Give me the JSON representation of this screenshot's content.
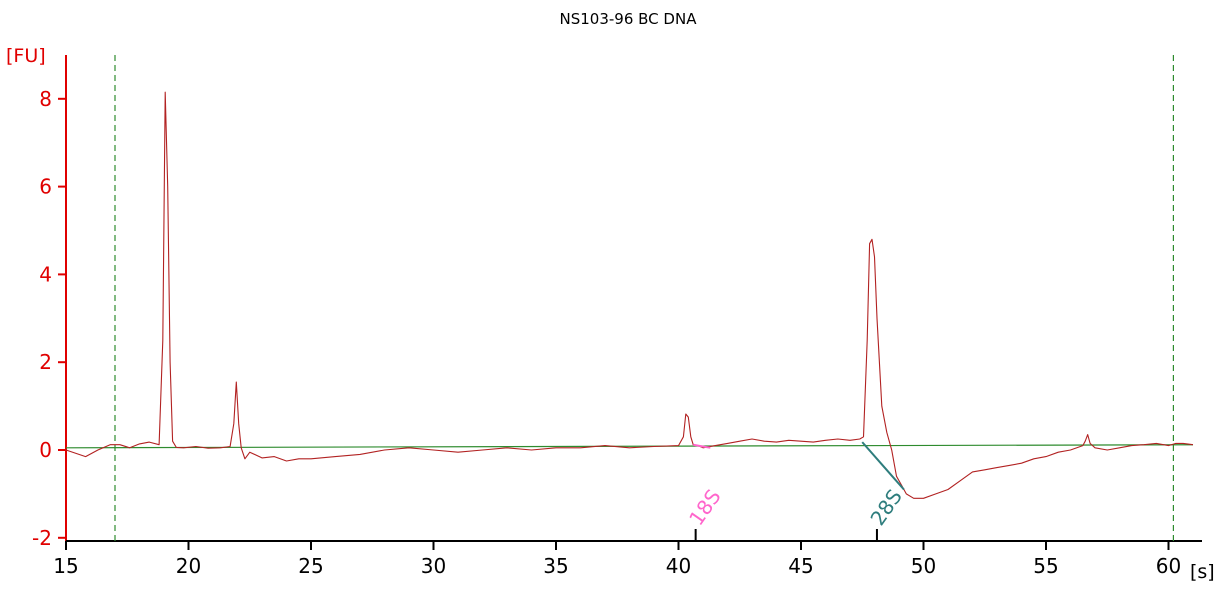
{
  "chart_data": {
    "type": "line",
    "title": "NS103-96 BC DNA",
    "y_unit": "[FU]",
    "x_unit": "[s]",
    "xlim": [
      15,
      61
    ],
    "ylim": [
      -2,
      8.8
    ],
    "x_ticks": [
      "15",
      "20",
      "25",
      "30",
      "35",
      "40",
      "45",
      "50",
      "55",
      "60"
    ],
    "y_ticks": [
      "-2",
      "0",
      "2",
      "4",
      "6",
      "8"
    ],
    "markers": [
      {
        "x": 17.0,
        "style": "dashed",
        "color": "#2e8b2e"
      },
      {
        "x": 60.2,
        "style": "dashed",
        "color": "#2e8b2e"
      }
    ],
    "baseline": {
      "x": [
        15,
        61
      ],
      "y": [
        0.05,
        0.12
      ],
      "color": "#2e8b2e"
    },
    "series": [
      {
        "color": "#b22222",
        "x": [
          15.0,
          15.8,
          16.3,
          16.8,
          17.2,
          17.6,
          18.0,
          18.4,
          18.8,
          18.95,
          19.05,
          19.15,
          19.25,
          19.35,
          19.5,
          19.8,
          20.3,
          20.8,
          21.3,
          21.7,
          21.85,
          21.95,
          22.05,
          22.15,
          22.3,
          22.5,
          23.0,
          23.5,
          24.0,
          24.5,
          25.0,
          26.0,
          27.0,
          28.0,
          29.0,
          30.0,
          31.0,
          32.0,
          33.0,
          34.0,
          35.0,
          36.0,
          37.0,
          38.0,
          39.0,
          40.0,
          40.2,
          40.3,
          40.4,
          40.5,
          40.6,
          40.8,
          41.0,
          41.5,
          42.0,
          42.5,
          43.0,
          43.5,
          44.0,
          44.5,
          45.0,
          45.5,
          46.0,
          46.5,
          47.0,
          47.4,
          47.55,
          47.7,
          47.8,
          47.9,
          48.0,
          48.1,
          48.3,
          48.5,
          48.7,
          48.9,
          49.1,
          49.3,
          49.6,
          50.0,
          50.5,
          51.0,
          51.5,
          52.0,
          52.5,
          53.0,
          53.5,
          54.0,
          54.5,
          55.0,
          55.5,
          56.0,
          56.5,
          56.6,
          56.7,
          56.8,
          57.0,
          57.5,
          58.0,
          58.5,
          59.0,
          59.5,
          60.0,
          60.3,
          60.6,
          61.0
        ],
        "y": [
          0.0,
          -0.15,
          0.0,
          0.12,
          0.12,
          0.05,
          0.14,
          0.18,
          0.12,
          2.5,
          8.15,
          6.0,
          2.0,
          0.2,
          0.06,
          0.05,
          0.08,
          0.04,
          0.05,
          0.08,
          0.6,
          1.55,
          0.6,
          0.05,
          -0.2,
          -0.05,
          -0.18,
          -0.15,
          -0.25,
          -0.2,
          -0.2,
          -0.15,
          -0.1,
          0.0,
          0.05,
          0.0,
          -0.05,
          0.0,
          0.05,
          0.0,
          0.05,
          0.05,
          0.1,
          0.05,
          0.08,
          0.1,
          0.3,
          0.82,
          0.75,
          0.3,
          0.12,
          0.1,
          0.05,
          0.1,
          0.15,
          0.2,
          0.25,
          0.2,
          0.18,
          0.22,
          0.2,
          0.18,
          0.22,
          0.25,
          0.22,
          0.25,
          0.3,
          2.5,
          4.7,
          4.8,
          4.4,
          3.0,
          1.0,
          0.4,
          0.0,
          -0.6,
          -0.8,
          -1.0,
          -1.1,
          -1.1,
          -1.0,
          -0.9,
          -0.7,
          -0.5,
          -0.45,
          -0.4,
          -0.35,
          -0.3,
          -0.2,
          -0.15,
          -0.05,
          0.0,
          0.1,
          0.2,
          0.35,
          0.15,
          0.05,
          0.0,
          0.05,
          0.1,
          0.12,
          0.15,
          0.1,
          0.15,
          0.15,
          0.12
        ]
      }
    ],
    "annotations": [
      {
        "label": "18S",
        "x": 40.7,
        "color": "#ff66cc",
        "line_from": [
          40.6,
          0.12
        ],
        "line_to": [
          41.3,
          0.05
        ]
      },
      {
        "label": "28S",
        "x": 48.1,
        "color": "#2e7d7d",
        "line_from": [
          47.5,
          0.18
        ],
        "line_to": [
          49.2,
          -0.9
        ]
      }
    ],
    "grid": false
  }
}
